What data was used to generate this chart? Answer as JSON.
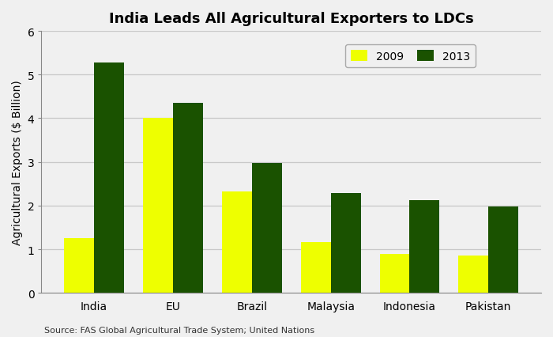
{
  "title": "India Leads All Agricultural Exporters to LDCs",
  "categories": [
    "India",
    "EU",
    "Brazil",
    "Malaysia",
    "Indonesia",
    "Pakistan"
  ],
  "values_2009": [
    1.25,
    4.0,
    2.32,
    1.17,
    0.9,
    0.85
  ],
  "values_2013": [
    5.27,
    4.35,
    2.97,
    2.28,
    2.12,
    1.97
  ],
  "color_2009": "#EEFF00",
  "color_2013": "#1a5200",
  "ylabel": "Agricultural Exports ($ Billion)",
  "ylim": [
    0,
    6
  ],
  "yticks": [
    0,
    1,
    2,
    3,
    4,
    5,
    6
  ],
  "legend_labels": [
    "2009",
    "2013"
  ],
  "source": "Source: FAS Global Agricultural Trade System; United Nations",
  "bar_width": 0.38,
  "background_color": "#f0f0f0",
  "plot_bg_color": "#f0f0f0",
  "grid_color": "#c8c8c8",
  "title_fontsize": 13,
  "axis_label_fontsize": 10,
  "tick_fontsize": 10,
  "source_fontsize": 8,
  "legend_fontsize": 10
}
